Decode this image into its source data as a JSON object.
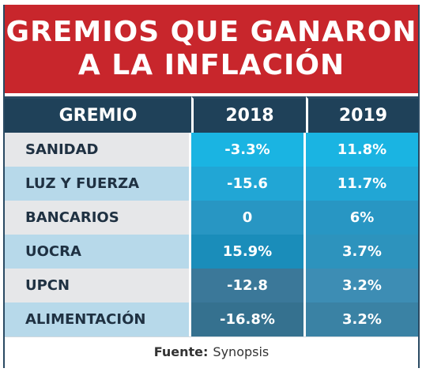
{
  "header": {
    "title_line1": "GREMIOS QUE GANARON",
    "title_line2": "A LA INFLACIÓN"
  },
  "table": {
    "columns": [
      "GREMIO",
      "2018",
      "2019"
    ],
    "rows": [
      {
        "gremio": "SANIDAD",
        "v2018": "-3.3%",
        "v2019": "11.8%",
        "c2018": "#1ab4e2",
        "c2019": "#1ab4e2"
      },
      {
        "gremio": "LUZ Y FUERZA",
        "v2018": "-15.6",
        "v2019": "11.7%",
        "c2018": "#21a6d5",
        "c2019": "#21a6d5"
      },
      {
        "gremio": "BANCARIOS",
        "v2018": "0",
        "v2019": "6%",
        "c2018": "#2896c3",
        "c2019": "#2896c3"
      },
      {
        "gremio": "UOCRA",
        "v2018": "15.9%",
        "v2019": "3.7%",
        "c2018": "#1a8dba",
        "c2019": "#2d93bd"
      },
      {
        "gremio": "UPCN",
        "v2018": "-12.8",
        "v2019": "3.2%",
        "c2018": "#3b7899",
        "c2019": "#3d8db4"
      },
      {
        "gremio": "ALIMENTACIÓN",
        "v2018": "-16.8%",
        "v2019": "3.2%",
        "c2018": "#35718f",
        "c2019": "#3a82a4"
      }
    ]
  },
  "footer": {
    "label": "Fuente:",
    "source": "Synopsis"
  },
  "chart_data": {
    "type": "table",
    "title": "GREMIOS QUE GANARON A LA INFLACIÓN",
    "columns": [
      "GREMIO",
      "2018",
      "2019"
    ],
    "categories": [
      "SANIDAD",
      "LUZ Y FUERZA",
      "BANCARIOS",
      "UOCRA",
      "UPCN",
      "ALIMENTACIÓN"
    ],
    "series": [
      {
        "name": "2018",
        "values": [
          "-3.3%",
          "-15.6",
          "0",
          "15.9%",
          "-12.8",
          "-16.8%"
        ]
      },
      {
        "name": "2019",
        "values": [
          "11.8%",
          "11.7%",
          "6%",
          "3.7%",
          "3.2%",
          "3.2%"
        ]
      }
    ],
    "source": "Synopsis"
  }
}
